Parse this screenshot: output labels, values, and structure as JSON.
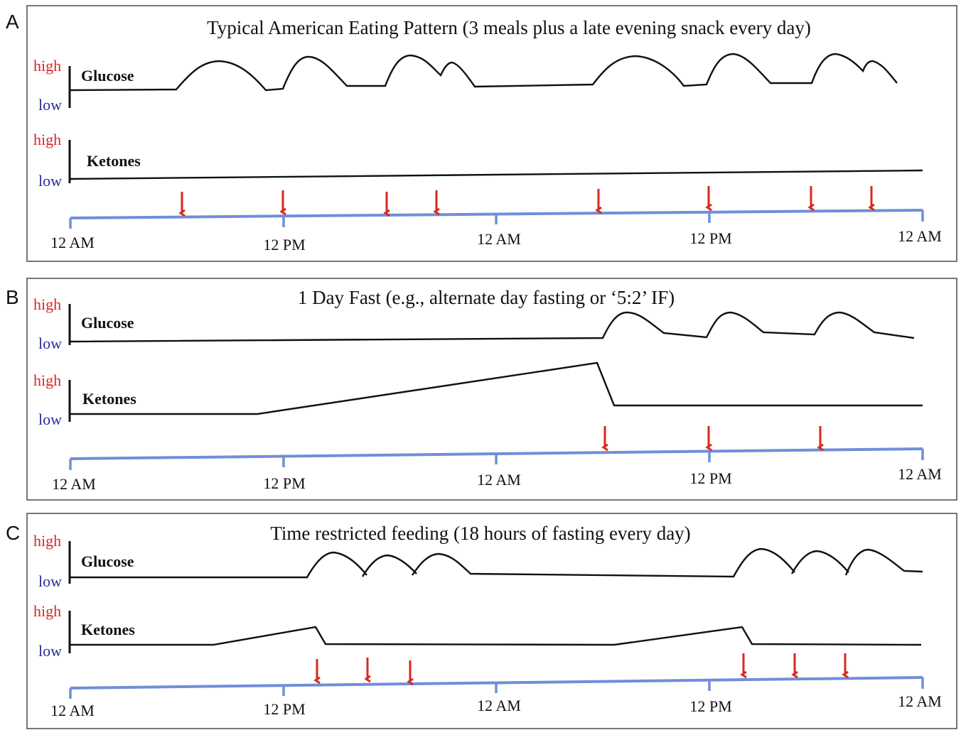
{
  "colors": {
    "high": "#d62728",
    "low": "#2b2b9a",
    "timeline": "#6f8fd8",
    "arrow": "#d62a1e",
    "curve": "#111111"
  },
  "axis_labels": {
    "high": "high",
    "low": "low",
    "glucose": "Glucose",
    "ketones": "Ketones"
  },
  "timeline_ticks": [
    "12 AM",
    "12 PM",
    "12 AM",
    "12 PM",
    "12 AM"
  ],
  "panels": [
    {
      "letter": "A",
      "title": "Typical American Eating Pattern (3 meals plus a late evening snack every day)"
    },
    {
      "letter": "B",
      "title": "1 Day Fast  (e.g., alternate day fasting or ‘5:2’ IF)"
    },
    {
      "letter": "C",
      "title": "Time restricted feeding (18 hours of fasting every day)"
    }
  ]
}
